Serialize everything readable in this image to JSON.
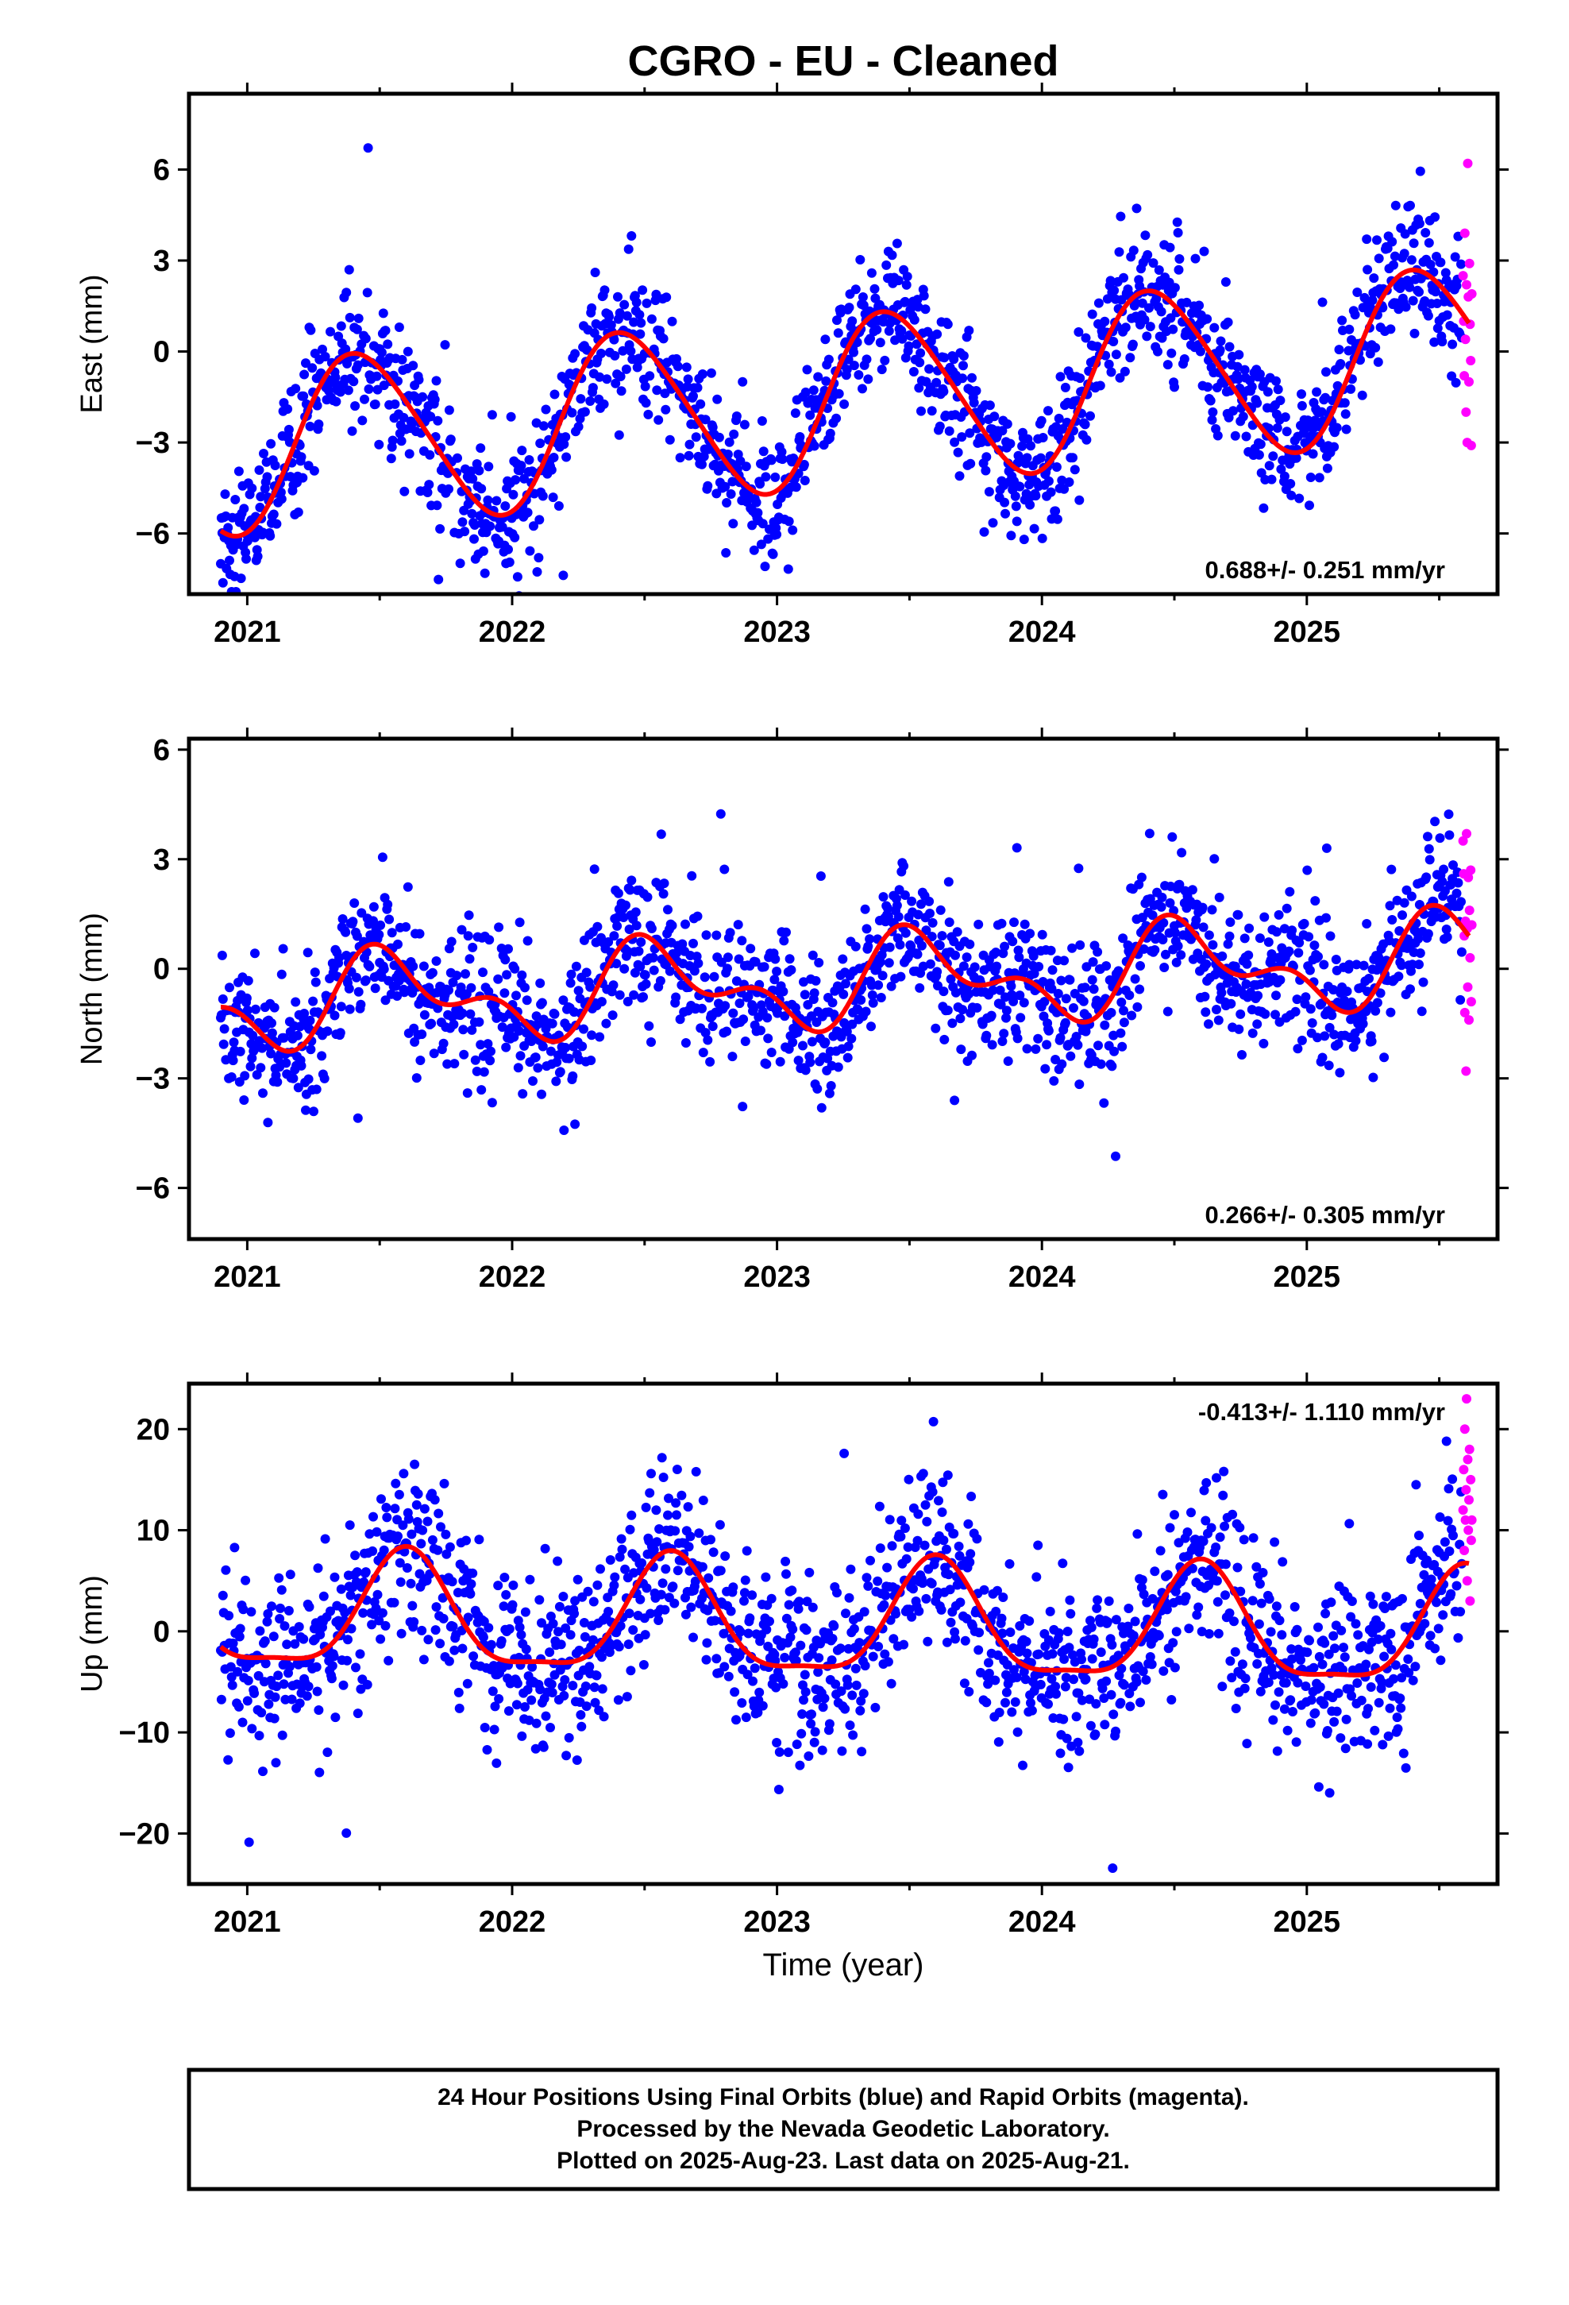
{
  "title": "CGRO  - EU - Cleaned",
  "x_axis_label": "Time (year)",
  "footer": {
    "line1": "24 Hour Positions Using Final Orbits (blue) and Rapid Orbits (magenta).",
    "line2": "Processed by the Nevada Geodetic Laboratory.",
    "line3": "Plotted on 2025-Aug-23. Last data on 2025-Aug-21."
  },
  "colors": {
    "final": "#0000ff",
    "rapid": "#ff00ff",
    "model": "#ff0000",
    "frame": "#000000"
  },
  "chart_data": [
    {
      "type": "scatter",
      "name": "east",
      "ylabel": "East (mm)",
      "xlim": [
        2020.78,
        2025.72
      ],
      "ylim": [
        -8.0,
        8.5
      ],
      "xticks": [
        2021,
        2022,
        2023,
        2024,
        2025
      ],
      "yticks": [
        -6,
        -3,
        0,
        3,
        6
      ],
      "ytick_labels": [
        "−6",
        "−3",
        "0",
        "3",
        "6"
      ],
      "rate_label": "0.688+/- 0.251 mm/yr",
      "rate_position": "bottom-right",
      "model": {
        "intercept": -1.6,
        "trend": 0.688,
        "t0": 2023.3,
        "annual_amp": 2.8,
        "annual_peak": 2021.43,
        "semi_amp": 0.3,
        "semi_peak": 2021.3
      },
      "scatter_sigma": 1.05,
      "rapid_values": [
        2.5,
        1.0,
        -0.8,
        3.9,
        0.4,
        -2.0,
        2.2,
        -3.0,
        6.2,
        1.8,
        -1.0,
        2.9,
        0.9,
        -0.3,
        -3.1,
        1.9
      ]
    },
    {
      "type": "scatter",
      "name": "north",
      "ylabel": "North (mm)",
      "xlim": [
        2020.78,
        2025.72
      ],
      "ylim": [
        -7.4,
        6.3
      ],
      "xticks": [
        2021,
        2022,
        2023,
        2024,
        2025
      ],
      "yticks": [
        -6,
        -3,
        0,
        3,
        6
      ],
      "ytick_labels": [
        "−6",
        "−3",
        "0",
        "3",
        "6"
      ],
      "rate_label": "0.266+/- 0.305 mm/yr",
      "rate_position": "bottom-right",
      "model": {
        "intercept": -0.35,
        "trend": 0.266,
        "t0": 2023.3,
        "annual_amp": 1.0,
        "annual_peak": 2021.55,
        "semi_amp": 0.65,
        "semi_peak": 2021.45
      },
      "scatter_sigma": 0.95,
      "rapid_values": [
        3.5,
        2.6,
        0.9,
        -1.2,
        1.3,
        -2.8,
        3.7,
        1.1,
        -0.5,
        2.5,
        -1.4,
        1.6,
        0.3,
        2.7,
        -0.9,
        1.2
      ]
    },
    {
      "type": "scatter",
      "name": "up",
      "ylabel": "Up (mm)",
      "xlim": [
        2020.78,
        2025.72
      ],
      "ylim": [
        -25,
        24.5
      ],
      "xticks": [
        2021,
        2022,
        2023,
        2024,
        2025
      ],
      "yticks": [
        -20,
        -10,
        0,
        10,
        20
      ],
      "ytick_labels": [
        "−20",
        "−10",
        "0",
        "10",
        "20"
      ],
      "rate_label": "-0.413+/- 1.110 mm/yr",
      "rate_position": "top-right",
      "model": {
        "intercept": 0.5,
        "trend": -0.413,
        "t0": 2023.3,
        "annual_amp": 5.6,
        "annual_peak": 2021.6,
        "semi_amp": 1.6,
        "semi_peak": 2021.1
      },
      "scatter_sigma": 4.2,
      "rapid_values": [
        12,
        16,
        8,
        20,
        11,
        14,
        23,
        5,
        17,
        10,
        13,
        18,
        3,
        15,
        9,
        11
      ]
    }
  ]
}
